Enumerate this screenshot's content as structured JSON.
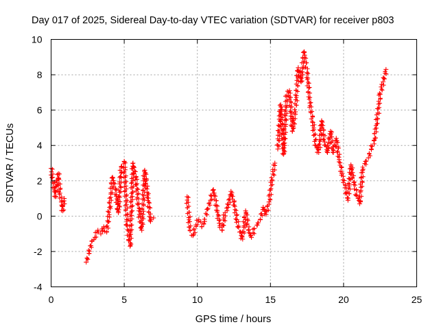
{
  "chart_data": {
    "type": "scatter",
    "title": "Day 017 of 2025, Sidereal Day-to-day VTEC variation (SDTVAR) for receiver p803",
    "xlabel": "GPS time / hours",
    "ylabel": "SDTVAR / TECUs",
    "xlim": [
      0,
      25
    ],
    "ylim": [
      -4,
      10
    ],
    "xticks": [
      0,
      5,
      10,
      15,
      20,
      25
    ],
    "yticks": [
      -4,
      -2,
      0,
      2,
      4,
      6,
      8,
      10
    ],
    "xtick_labels": [
      "0",
      "5",
      "10",
      "15",
      "20",
      "25"
    ],
    "ytick_labels": [
      "-4",
      "-2",
      "0",
      "2",
      "4",
      "6",
      "8",
      "10"
    ],
    "grid": true,
    "marker": "+",
    "color": "#ff0000",
    "series": [
      {
        "name": "SDTVAR",
        "segments": [
          {
            "x": [
              0.0,
              0.1,
              0.2,
              0.3,
              0.4,
              0.5,
              0.6,
              0.7,
              0.8,
              0.9
            ],
            "y": [
              2.7,
              2.2,
              1.6,
              1.1,
              1.9,
              2.4,
              1.3,
              0.8,
              0.3,
              1.0
            ]
          },
          {
            "x": [
              2.4,
              2.6,
              2.8,
              3.0,
              3.2,
              3.4,
              3.6,
              3.8,
              4.0,
              4.2,
              4.4,
              4.6,
              4.8,
              5.0,
              5.2,
              5.4,
              5.6,
              5.8,
              6.0,
              6.2,
              6.4,
              6.6,
              6.8,
              7.0
            ],
            "y": [
              -2.6,
              -2.1,
              -1.4,
              -1.2,
              -0.8,
              -1.0,
              -0.6,
              -0.9,
              0.5,
              2.2,
              1.5,
              0.2,
              2.8,
              3.1,
              -0.5,
              -1.7,
              3.0,
              2.2,
              0.3,
              -0.8,
              2.6,
              1.2,
              -0.3,
              -0.1
            ]
          },
          {
            "x": [
              9.3,
              9.5,
              9.7,
              9.9,
              10.1,
              10.3,
              10.5,
              10.7,
              10.9,
              11.1,
              11.3,
              11.5,
              11.7,
              11.9,
              12.1,
              12.3,
              12.5,
              12.7,
              12.9,
              13.1,
              13.3,
              13.5,
              13.7,
              13.9,
              14.1,
              14.3,
              14.5,
              14.7,
              14.9,
              15.1,
              15.3
            ],
            "y": [
              1.1,
              -0.8,
              -1.1,
              -0.5,
              -0.2,
              -0.6,
              -0.3,
              0.4,
              0.9,
              1.5,
              0.6,
              -0.4,
              -0.8,
              0.2,
              0.5,
              1.4,
              0.8,
              -0.2,
              -0.9,
              -1.3,
              0.3,
              -0.8,
              -1.2,
              -0.7,
              -0.5,
              -0.2,
              0.5,
              0.1,
              0.8,
              2.0,
              3.0
            ]
          },
          {
            "x": [
              15.5,
              15.7,
              15.9,
              16.1,
              16.3,
              16.5,
              16.7,
              16.9,
              17.1,
              17.3,
              17.5,
              17.7,
              17.9,
              18.1,
              18.3,
              18.5,
              18.7,
              18.9,
              19.1,
              19.3,
              19.5,
              19.7,
              19.9,
              20.1,
              20.3,
              20.5,
              20.7,
              20.9,
              21.1,
              21.3,
              21.5,
              21.7,
              21.9,
              22.1,
              22.3,
              22.5,
              22.7,
              22.9
            ],
            "y": [
              3.8,
              6.3,
              3.5,
              6.8,
              7.1,
              4.8,
              5.9,
              8.4,
              7.6,
              9.3,
              8.1,
              6.4,
              5.3,
              4.0,
              3.6,
              5.4,
              4.2,
              3.6,
              4.8,
              3.6,
              4.4,
              3.2,
              2.4,
              1.6,
              0.9,
              2.9,
              1.9,
              1.2,
              0.7,
              2.6,
              3.1,
              3.3,
              3.8,
              4.3,
              5.5,
              6.9,
              7.6,
              8.3
            ]
          }
        ]
      }
    ]
  }
}
